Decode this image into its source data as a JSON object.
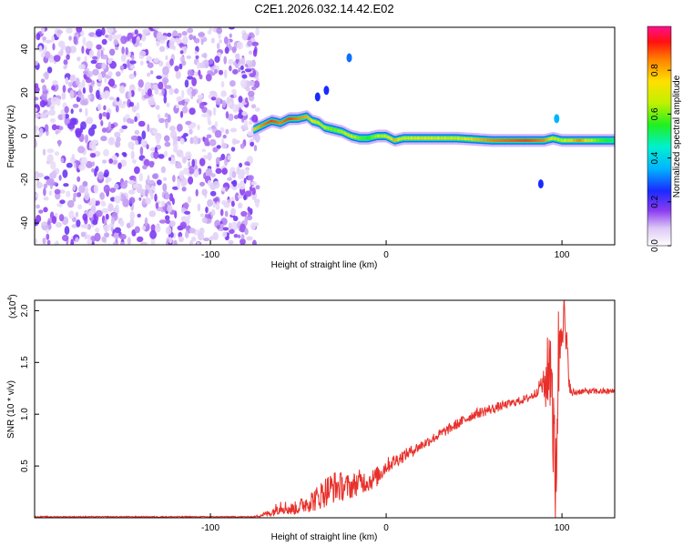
{
  "figure_title": "C2E1.2026.032.14.42.E02",
  "chart_data": [
    {
      "type": "heatmap",
      "title": "C2E1.2026.032.14.42.E02",
      "xlabel": "Height of straight line (km)",
      "ylabel": "Frequency (Hz)",
      "xlim": [
        -200,
        130
      ],
      "ylim": [
        -50,
        50
      ],
      "x_ticks": [
        -100,
        0,
        100
      ],
      "y_ticks": [
        -40,
        -20,
        0,
        20,
        40
      ],
      "colorbar": {
        "label": "Normalized spectral amplitude",
        "range": [
          0,
          1
        ],
        "ticks": [
          0.0,
          0.2,
          0.4,
          0.6,
          0.8
        ]
      },
      "noise_region_xlim": [
        -200,
        -73
      ],
      "ridge": {
        "x": [
          -75,
          -70,
          -65,
          -60,
          -55,
          -50,
          -45,
          -42,
          -38,
          -35,
          -30,
          -25,
          -20,
          -15,
          -10,
          -5,
          0,
          5,
          10,
          20,
          40,
          60,
          80,
          90,
          95,
          100,
          110,
          120,
          130
        ],
        "freq": [
          3,
          5,
          7,
          6,
          8,
          8,
          9,
          7,
          6,
          4,
          3,
          2,
          0,
          -1,
          -1,
          0,
          0,
          -2,
          -1,
          -1,
          -1,
          -2,
          -2,
          -2,
          -1,
          -2,
          -2,
          -2,
          -2
        ],
        "amplitude": [
          0.75,
          0.85,
          0.9,
          0.85,
          0.9,
          0.85,
          0.8,
          0.75,
          0.7,
          0.65,
          0.6,
          0.65,
          0.7,
          0.6,
          0.55,
          0.65,
          0.7,
          0.8,
          0.7,
          0.75,
          0.7,
          0.85,
          0.9,
          0.85,
          0.7,
          0.65,
          0.85,
          0.6,
          0.5
        ]
      },
      "blips": [
        {
          "x": -21,
          "freq": 36,
          "amplitude": 0.3
        },
        {
          "x": -39,
          "freq": 18,
          "amplitude": 0.25
        },
        {
          "x": -34,
          "freq": 21,
          "amplitude": 0.25
        },
        {
          "x": 97,
          "freq": 8,
          "amplitude": 0.35
        },
        {
          "x": 88,
          "freq": -22,
          "amplitude": 0.25
        }
      ]
    },
    {
      "type": "line",
      "xlabel": "Height of straight line (km)",
      "ylabel": "SNR (10 * v/v)",
      "y_scale_label": "(x10",
      "y_scale_exp": "4",
      "y_scale_close": ")",
      "xlim": [
        -200,
        130
      ],
      "ylim": [
        0,
        2.1
      ],
      "x_ticks": [
        -100,
        0,
        100
      ],
      "y_ticks": [
        0.5,
        1.0,
        1.5,
        2.0
      ],
      "y_tick_labels": [
        "0.5",
        "1.0",
        "1.5",
        "2.0"
      ],
      "series": [
        {
          "name": "SNR",
          "color": "#e8302a",
          "x": [
            -200,
            -150,
            -100,
            -75,
            -65,
            -60,
            -55,
            -50,
            -45,
            -40,
            -35,
            -30,
            -25,
            -20,
            -15,
            -10,
            -5,
            0,
            10,
            20,
            30,
            40,
            50,
            60,
            70,
            80,
            85,
            88,
            90,
            92,
            94,
            96,
            98,
            100,
            105,
            110,
            120,
            130
          ],
          "y": [
            0.01,
            0.01,
            0.01,
            0.01,
            0.05,
            0.12,
            0.08,
            0.1,
            0.15,
            0.18,
            0.25,
            0.3,
            0.3,
            0.3,
            0.35,
            0.35,
            0.4,
            0.5,
            0.6,
            0.7,
            0.8,
            0.9,
            1.0,
            1.05,
            1.1,
            1.15,
            1.2,
            1.3,
            1.25,
            1.4,
            1.6,
            0.2,
            1.5,
            2.1,
            1.2,
            1.22,
            1.22,
            1.22
          ],
          "noise": [
            0.005,
            0.005,
            0.005,
            0.005,
            0.04,
            0.08,
            0.06,
            0.07,
            0.1,
            0.12,
            0.15,
            0.16,
            0.14,
            0.12,
            0.12,
            0.1,
            0.1,
            0.08,
            0.06,
            0.05,
            0.05,
            0.05,
            0.05,
            0.05,
            0.04,
            0.04,
            0.05,
            0.06,
            0.2,
            0.4,
            0.6,
            0.7,
            0.6,
            0.4,
            0.05,
            0.03,
            0.03,
            0.03
          ]
        }
      ]
    }
  ],
  "colors": {
    "axis": "#000000",
    "line": "#e8302a"
  }
}
